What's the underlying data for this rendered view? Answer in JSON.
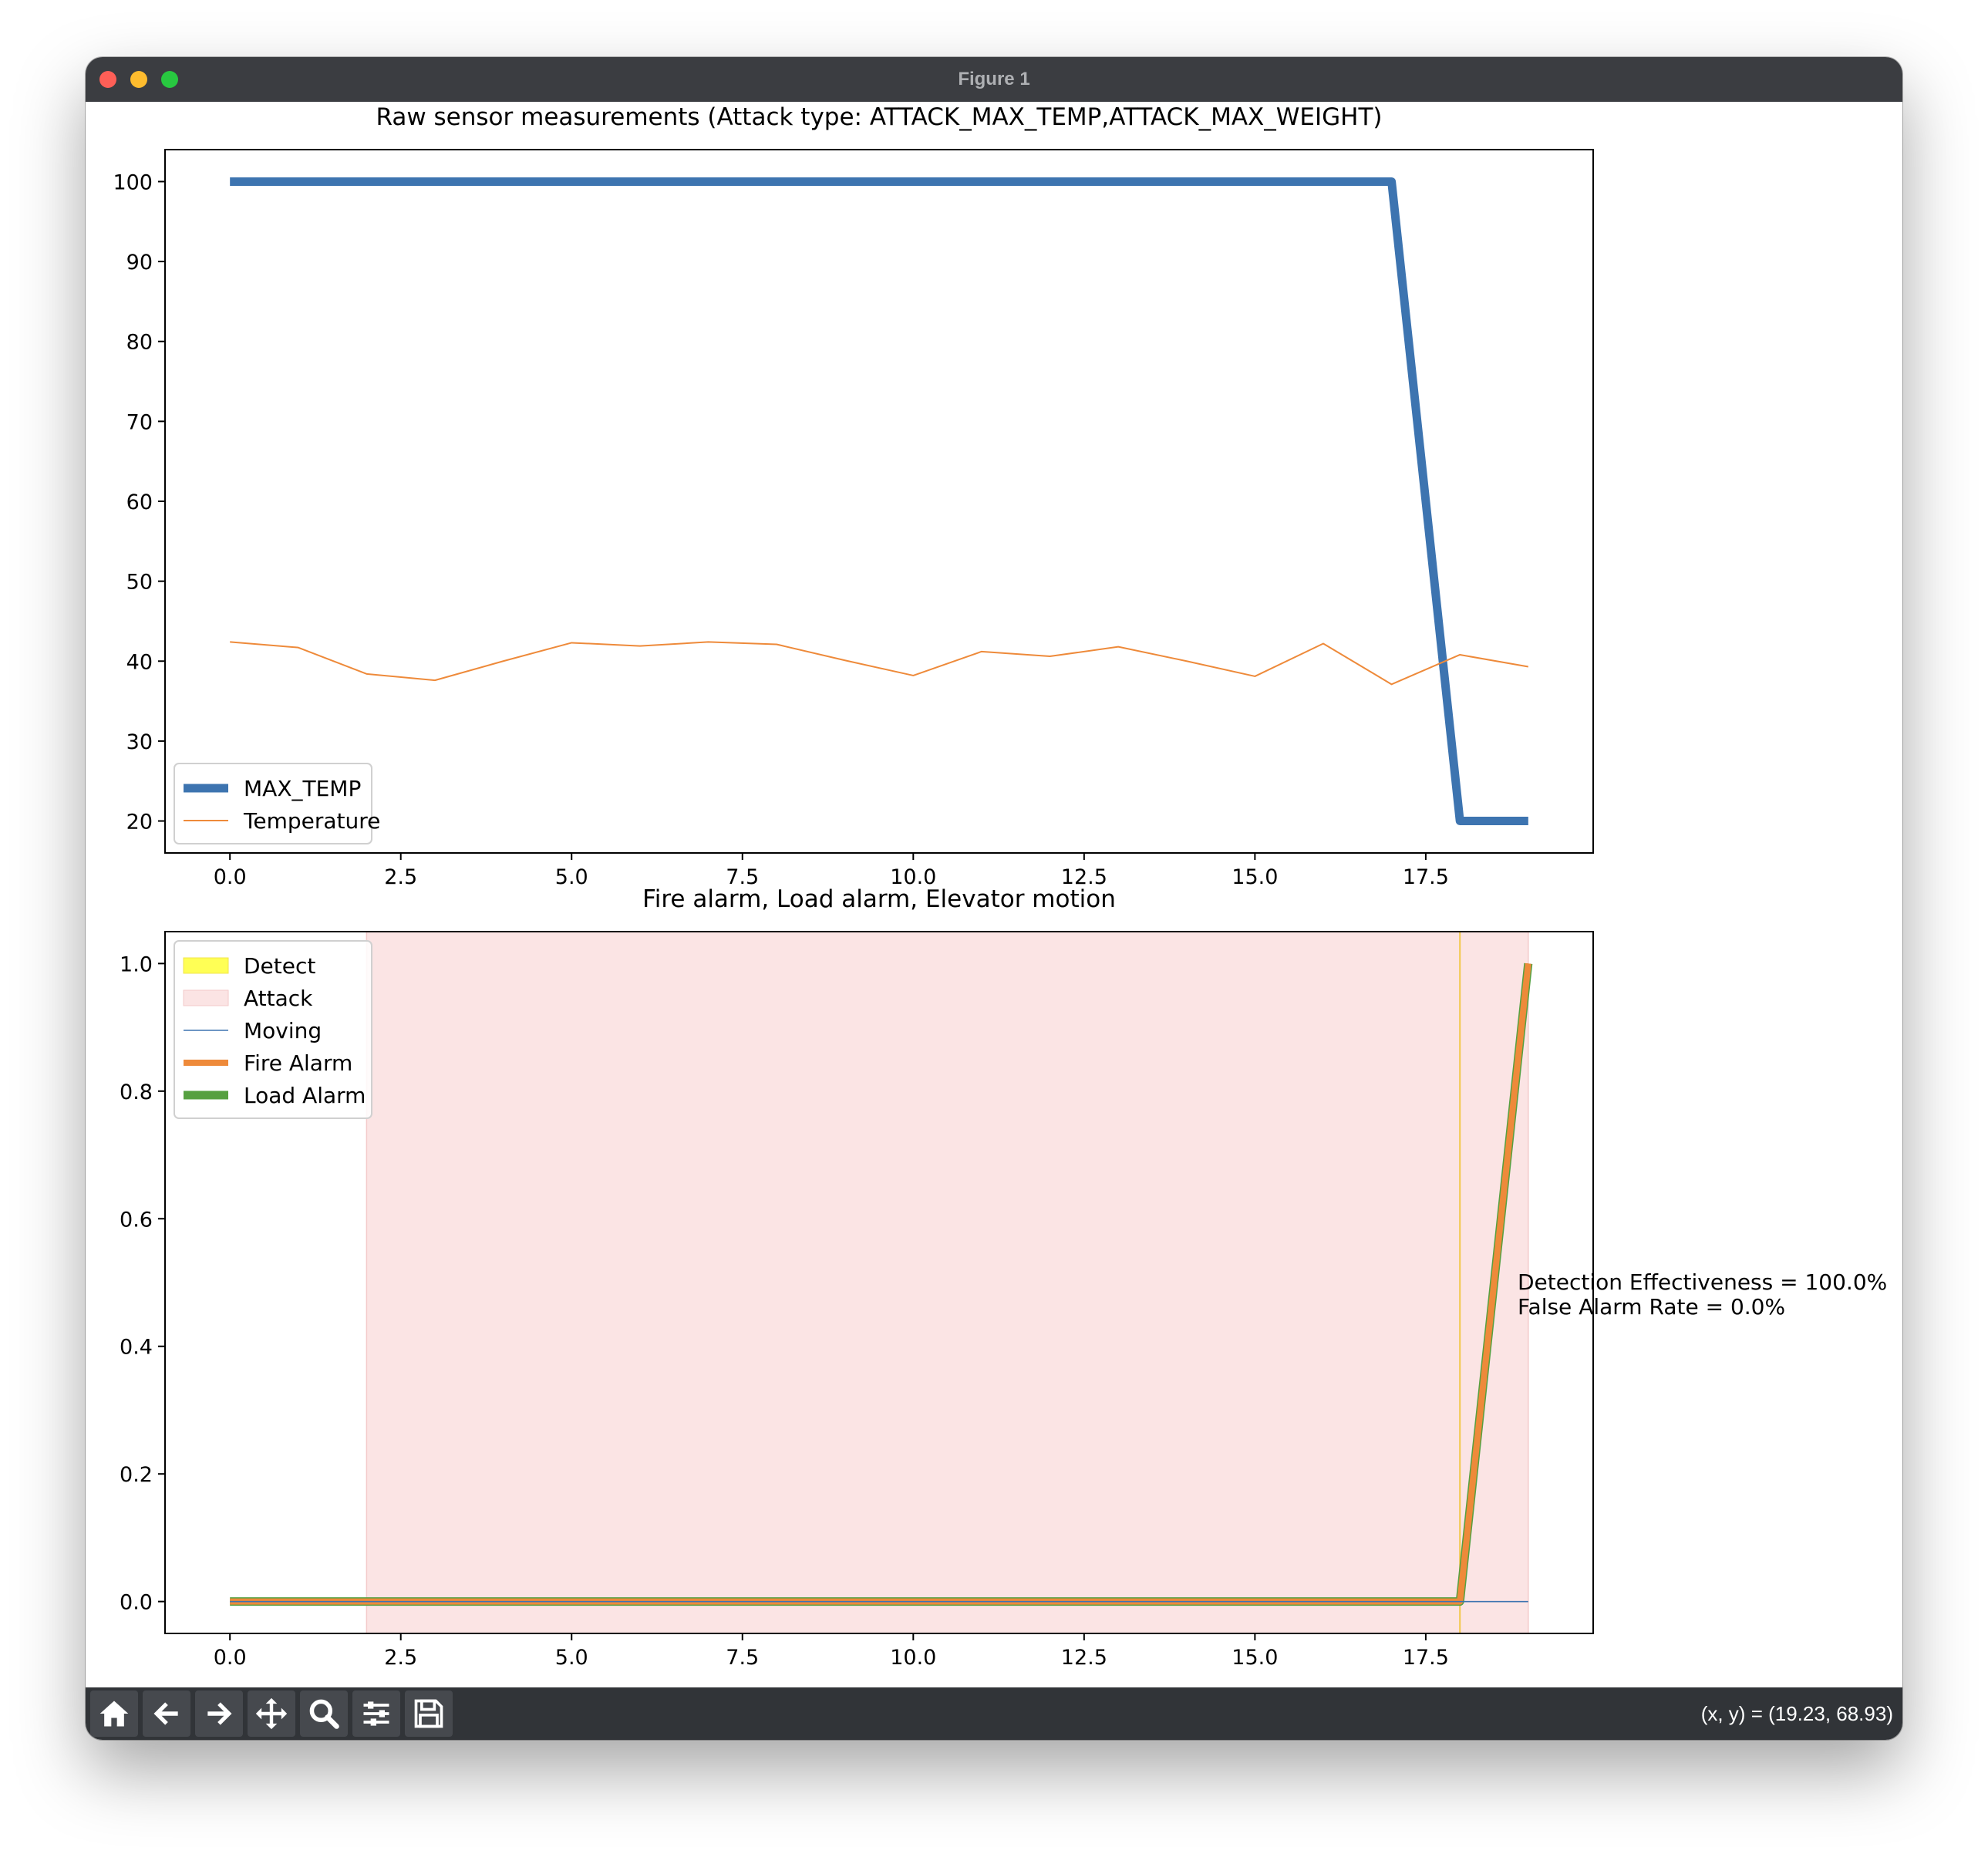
{
  "window": {
    "title": "Figure 1"
  },
  "toolbar": {
    "tools": [
      "home-icon",
      "back-arrow-icon",
      "forward-arrow-icon",
      "pan-icon",
      "zoom-icon",
      "configure-subplots-icon",
      "save-icon"
    ],
    "coord_readout": "(x, y) = (19.23, 68.93)"
  },
  "colors": {
    "max_temp": "#3d74b0",
    "temperature": "#ee8a3a",
    "detect": "#ffff55",
    "detect_line": "#f2c84b",
    "attack": "#fbe4e4",
    "moving": "#3d74b0",
    "fire_alarm": "#ee8a3a",
    "load_alarm": "#56a040"
  },
  "chart_data": [
    {
      "type": "line",
      "title": "Raw sensor measurements (Attack type: ATTACK_MAX_TEMP,ATTACK_MAX_WEIGHT)",
      "xlabel": "",
      "ylabel": "",
      "xlim": [
        -0.95,
        19.95
      ],
      "ylim": [
        16,
        104
      ],
      "xticks": [
        0,
        2.5,
        5,
        7.5,
        10,
        12.5,
        15,
        17.5
      ],
      "xtick_labels": [
        "0.0",
        "2.5",
        "5.0",
        "7.5",
        "10.0",
        "12.5",
        "15.0",
        "17.5"
      ],
      "yticks": [
        20,
        30,
        40,
        50,
        60,
        70,
        80,
        90,
        100
      ],
      "ytick_labels": [
        "20",
        "30",
        "40",
        "50",
        "60",
        "70",
        "80",
        "90",
        "100"
      ],
      "grid": false,
      "legend_position": "lower-left",
      "x": [
        0,
        1,
        2,
        3,
        4,
        5,
        6,
        7,
        8,
        9,
        10,
        11,
        12,
        13,
        14,
        15,
        16,
        17,
        18,
        19
      ],
      "series": [
        {
          "name": "MAX_TEMP",
          "values": [
            100,
            100,
            100,
            100,
            100,
            100,
            100,
            100,
            100,
            100,
            100,
            100,
            100,
            100,
            100,
            100,
            100,
            100,
            20,
            20
          ]
        },
        {
          "name": "Temperature",
          "values": [
            42.4,
            41.7,
            38.4,
            37.6,
            40.0,
            42.3,
            41.9,
            42.4,
            42.1,
            40.1,
            38.2,
            41.2,
            40.6,
            41.8,
            40.0,
            38.1,
            42.2,
            37.1,
            40.8,
            39.3
          ]
        }
      ]
    },
    {
      "type": "line",
      "title": "Fire alarm, Load alarm, Elevator motion",
      "xlabel": "",
      "ylabel": "",
      "xlim": [
        -0.95,
        19.95
      ],
      "ylim": [
        -0.05,
        1.05
      ],
      "xticks": [
        0,
        2.5,
        5,
        7.5,
        10,
        12.5,
        15,
        17.5
      ],
      "xtick_labels": [
        "0.0",
        "2.5",
        "5.0",
        "7.5",
        "10.0",
        "12.5",
        "15.0",
        "17.5"
      ],
      "yticks": [
        0,
        0.2,
        0.4,
        0.6,
        0.8,
        1.0
      ],
      "ytick_labels": [
        "0.0",
        "0.2",
        "0.4",
        "0.6",
        "0.8",
        "1.0"
      ],
      "grid": false,
      "legend_position": "upper-left",
      "legend": [
        "Detect",
        "Attack",
        "Moving",
        "Fire Alarm",
        "Load Alarm"
      ],
      "spans": [
        {
          "name": "Attack",
          "x0": 2,
          "x1": 19
        },
        {
          "name": "Detect",
          "x0": 18,
          "x1": 18
        }
      ],
      "x": [
        0,
        1,
        2,
        3,
        4,
        5,
        6,
        7,
        8,
        9,
        10,
        11,
        12,
        13,
        14,
        15,
        16,
        17,
        18,
        19
      ],
      "series": [
        {
          "name": "Moving",
          "values": [
            0,
            0,
            0,
            0,
            0,
            0,
            0,
            0,
            0,
            0,
            0,
            0,
            0,
            0,
            0,
            0,
            0,
            0,
            0,
            0
          ]
        },
        {
          "name": "Fire Alarm",
          "values": [
            0,
            0,
            0,
            0,
            0,
            0,
            0,
            0,
            0,
            0,
            0,
            0,
            0,
            0,
            0,
            0,
            0,
            0,
            0,
            1
          ]
        },
        {
          "name": "Load Alarm",
          "values": [
            0,
            0,
            0,
            0,
            0,
            0,
            0,
            0,
            0,
            0,
            0,
            0,
            0,
            0,
            0,
            0,
            0,
            0,
            0,
            1
          ]
        }
      ],
      "annotations": [
        "Detection Effectiveness = 100.0%",
        "False Alarm Rate = 0.0%"
      ]
    }
  ]
}
